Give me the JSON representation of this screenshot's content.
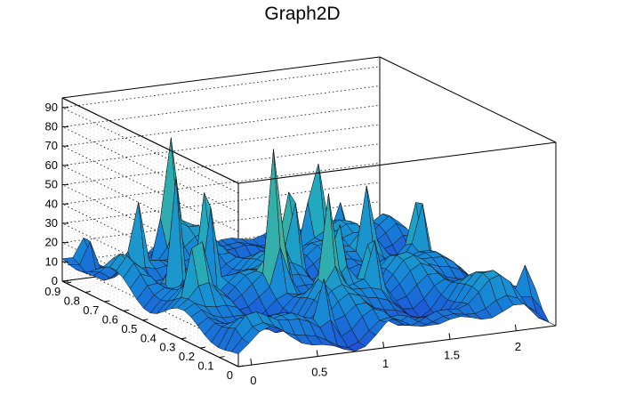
{
  "chart_data": {
    "type": "surface3d",
    "title": "Graph2D",
    "xlabel": "",
    "ylabel": "",
    "zlabel": "",
    "x_range": [
      -0.1,
      2.3
    ],
    "y_range": [
      0,
      0.92
    ],
    "z_range": [
      0,
      95
    ],
    "x_ticks": [
      "0",
      "0.5",
      "1",
      "1.5",
      "2"
    ],
    "y_ticks": [
      "0",
      "0.1",
      "0.2",
      "0.3",
      "0.4",
      "0.5",
      "0.6",
      "0.7",
      "0.8",
      "0.9"
    ],
    "z_ticks": [
      "0",
      "10",
      "20",
      "30",
      "40",
      "50",
      "60",
      "70",
      "80",
      "90"
    ],
    "grid": true,
    "colormap": [
      "#1f4fd6",
      "#1685d8",
      "#1fa8c2",
      "#4db58f",
      "#9dbc62",
      "#e4b33d",
      "#f5d33a"
    ],
    "surface": {
      "note": "",
      "peaks": [
        {
          "x": 0.45,
          "y": 0.55,
          "z": 88
        },
        {
          "x": 0.8,
          "y": 0.42,
          "z": 92
        },
        {
          "x": 0.3,
          "y": 0.6,
          "z": 78
        },
        {
          "x": 0.6,
          "y": 0.85,
          "z": 70
        },
        {
          "x": 1.1,
          "y": 0.55,
          "z": 62
        },
        {
          "x": 1.15,
          "y": 0.35,
          "z": 55
        },
        {
          "x": 0.95,
          "y": 0.25,
          "z": 60
        },
        {
          "x": 1.35,
          "y": 0.3,
          "z": 48
        },
        {
          "x": 1.55,
          "y": 0.75,
          "z": 68
        },
        {
          "x": 1.75,
          "y": 0.6,
          "z": 50
        },
        {
          "x": 2.05,
          "y": 0.55,
          "z": 58
        },
        {
          "x": 0.05,
          "y": 0.9,
          "z": 42
        },
        {
          "x": 0.2,
          "y": 0.75,
          "z": 55
        },
        {
          "x": 0.1,
          "y": 0.35,
          "z": 52
        },
        {
          "x": 1.9,
          "y": 0.85,
          "z": 35
        },
        {
          "x": 2.25,
          "y": 0.1,
          "z": 38
        },
        {
          "x": 0.7,
          "y": 0.1,
          "z": 40
        }
      ],
      "base": 12
    }
  }
}
